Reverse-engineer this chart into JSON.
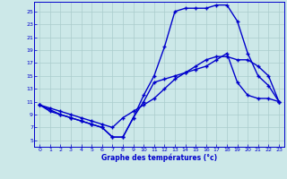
{
  "xlabel": "Graphe des températures (°c)",
  "bg_color": "#cce8e8",
  "grid_color": "#aacccc",
  "line_color": "#0000cc",
  "xlim": [
    -0.5,
    23.5
  ],
  "ylim": [
    4,
    26.5
  ],
  "xticks": [
    0,
    1,
    2,
    3,
    4,
    5,
    6,
    7,
    8,
    9,
    10,
    11,
    12,
    13,
    14,
    15,
    16,
    17,
    18,
    19,
    20,
    21,
    22,
    23
  ],
  "yticks": [
    5,
    7,
    9,
    11,
    13,
    15,
    17,
    19,
    21,
    23,
    25
  ],
  "line1_x": [
    0,
    1,
    2,
    3,
    4,
    5,
    6,
    7,
    8,
    9,
    10,
    11,
    12,
    13,
    14,
    15,
    16,
    17,
    18,
    19,
    20,
    21,
    22,
    23
  ],
  "line1_y": [
    10.5,
    10.0,
    9.5,
    9.0,
    8.5,
    8.0,
    7.5,
    7.0,
    8.5,
    9.5,
    10.5,
    11.5,
    13.0,
    14.5,
    15.5,
    16.5,
    17.5,
    18.0,
    18.0,
    17.5,
    17.5,
    16.5,
    15.0,
    11.0
  ],
  "line2_x": [
    0,
    1,
    2,
    3,
    4,
    5,
    6,
    7,
    8,
    9,
    10,
    11,
    12,
    13,
    14,
    15,
    16,
    17,
    18,
    19,
    20,
    21,
    22,
    23
  ],
  "line2_y": [
    10.5,
    9.5,
    9.0,
    8.5,
    8.0,
    7.5,
    7.0,
    5.5,
    5.5,
    8.5,
    12.0,
    15.0,
    19.5,
    25.0,
    25.5,
    25.5,
    25.5,
    26.0,
    26.0,
    23.5,
    18.5,
    15.0,
    13.5,
    11.0
  ],
  "line3_x": [
    0,
    2,
    3,
    4,
    5,
    6,
    7,
    8,
    9,
    10,
    11,
    12,
    13,
    14,
    15,
    16,
    17,
    18,
    19,
    20,
    21,
    22,
    23
  ],
  "line3_y": [
    10.5,
    9.0,
    8.5,
    8.0,
    7.5,
    7.0,
    5.5,
    5.5,
    8.5,
    11.0,
    14.0,
    14.5,
    15.0,
    15.5,
    16.0,
    16.5,
    17.5,
    18.5,
    14.0,
    12.0,
    11.5,
    11.5,
    11.0
  ]
}
